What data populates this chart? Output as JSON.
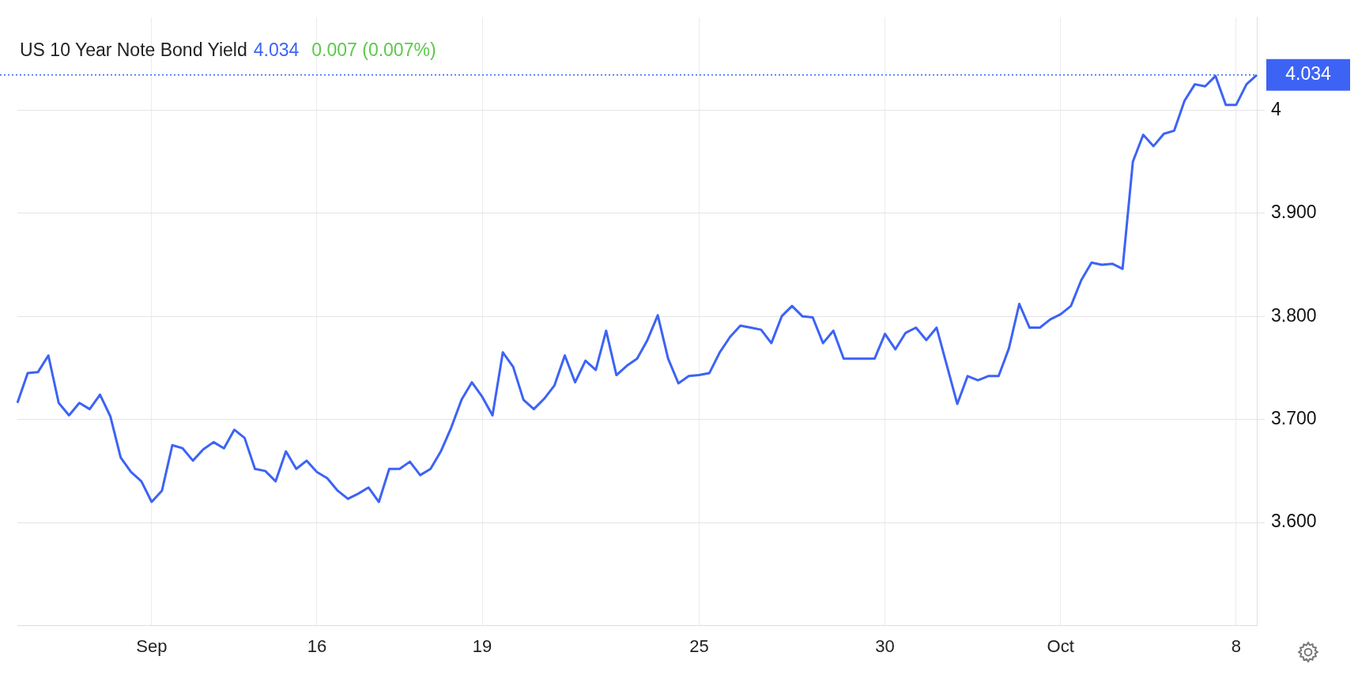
{
  "chart_data": {
    "type": "line",
    "title": "US 10 Year Note Bond Yield",
    "annotations": [
      "4.034",
      "0.007 (0.007%)"
    ],
    "categories": [
      null,
      null,
      null,
      null,
      null,
      null,
      null,
      null,
      null,
      null,
      null,
      null,
      null,
      "Sep",
      null,
      null,
      null,
      null,
      null,
      null,
      null,
      null,
      null,
      null,
      null,
      null,
      null,
      null,
      null,
      "16",
      null,
      null,
      null,
      null,
      null,
      null,
      null,
      null,
      null,
      null,
      null,
      null,
      null,
      null,
      null,
      "19",
      null,
      null,
      null,
      null,
      null,
      null,
      null,
      null,
      null,
      null,
      null,
      null,
      null,
      null,
      null,
      null,
      null,
      null,
      null,
      null,
      "25",
      null,
      null,
      null,
      null,
      null,
      null,
      null,
      null,
      null,
      null,
      null,
      null,
      null,
      null,
      null,
      null,
      null,
      "30",
      null,
      null,
      null,
      null,
      null,
      null,
      null,
      null,
      null,
      null,
      null,
      null,
      null,
      null,
      null,
      null,
      "Oct",
      null,
      null,
      null,
      null,
      null,
      null,
      null,
      null,
      null,
      null,
      null,
      null,
      null,
      null,
      null,
      null,
      "8",
      null,
      null
    ],
    "series": [
      {
        "color": "#3d63f5",
        "values": [
          3.716,
          3.745,
          3.746,
          3.762,
          3.716,
          3.704,
          3.716,
          3.71,
          3.724,
          3.703,
          3.663,
          3.649,
          3.64,
          3.62,
          3.631,
          3.675,
          3.672,
          3.66,
          3.671,
          3.678,
          3.672,
          3.69,
          3.682,
          3.652,
          3.65,
          3.64,
          3.669,
          3.652,
          3.66,
          3.649,
          3.643,
          3.631,
          3.623,
          3.628,
          3.634,
          3.62,
          3.652,
          3.652,
          3.659,
          3.646,
          3.652,
          3.669,
          3.692,
          3.719,
          3.736,
          3.722,
          3.704,
          3.765,
          3.751,
          3.719,
          3.71,
          3.72,
          3.733,
          3.762,
          3.736,
          3.757,
          3.748,
          3.786,
          3.743,
          3.752,
          3.759,
          3.777,
          3.801,
          3.759,
          3.735,
          3.742,
          3.743,
          3.745,
          3.765,
          3.78,
          3.791,
          3.789,
          3.787,
          3.774,
          3.8,
          3.81,
          3.8,
          3.799,
          3.774,
          3.786,
          3.759,
          3.759,
          3.759,
          3.759,
          3.783,
          3.768,
          3.784,
          3.789,
          3.777,
          3.789,
          3.752,
          3.715,
          3.742,
          3.738,
          3.742,
          3.742,
          3.769,
          3.812,
          3.789,
          3.789,
          3.797,
          3.802,
          3.81,
          3.835,
          3.852,
          3.85,
          3.851,
          3.846,
          3.95,
          3.976,
          3.965,
          3.977,
          3.98,
          4.009,
          4.025,
          4.023,
          4.033,
          4.005,
          4.005,
          4.025,
          4.034
        ]
      }
    ],
    "ylim": [
      3.5,
      4.09
    ],
    "yticks": [
      {
        "value": 3.6,
        "label": "3.600"
      },
      {
        "value": 3.7,
        "label": "3.700"
      },
      {
        "value": 3.8,
        "label": "3.800"
      },
      {
        "value": 3.9,
        "label": "3.900"
      },
      4
    ],
    "grid": true,
    "marker": "none",
    "ref_lines": [
      {
        "axis": "y",
        "value": 4.034,
        "label": "4.034",
        "color": "#3d63f5",
        "line_style": "dotted"
      }
    ]
  }
}
